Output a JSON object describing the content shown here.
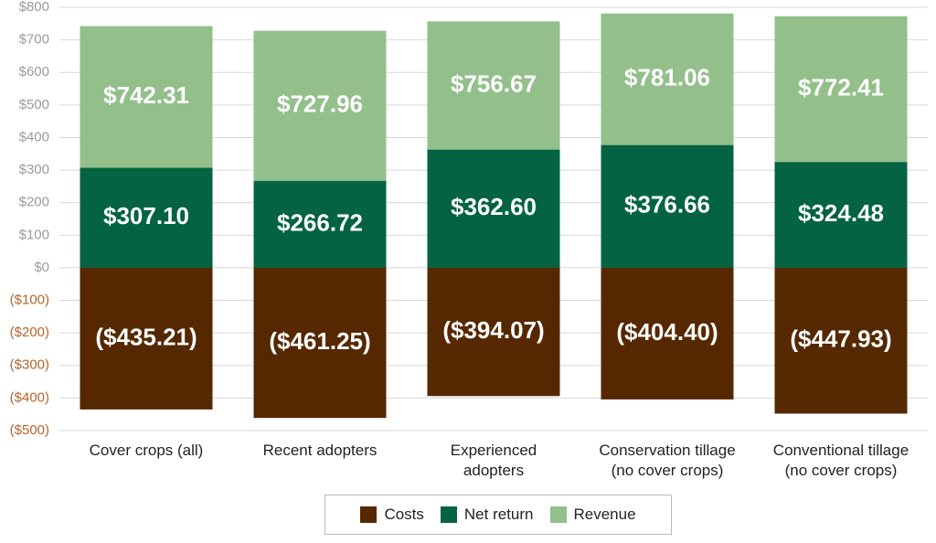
{
  "chart_data": {
    "type": "bar",
    "categories": [
      "Cover crops (all)",
      "Recent adopters",
      "Experienced\nadopters",
      "Conservation tillage\n(no cover crops)",
      "Conventional tillage\n(no cover crops)"
    ],
    "series": [
      {
        "name": "Costs",
        "color": "#552800",
        "values": [
          -435.21,
          -461.25,
          -394.07,
          -404.4,
          -447.93
        ],
        "value_labels": [
          "($435.21)",
          "($461.25)",
          "($394.07)",
          "($404.40)",
          "($447.93)"
        ]
      },
      {
        "name": "Net return",
        "color": "#036342",
        "values": [
          307.1,
          266.72,
          362.6,
          376.66,
          324.48
        ],
        "value_labels": [
          "$307.10",
          "$266.72",
          "$362.60",
          "$376.66",
          "$324.48"
        ]
      },
      {
        "name": "Revenue",
        "color": "#93bf8b",
        "values": [
          742.31,
          727.96,
          756.67,
          781.06,
          772.41
        ],
        "value_labels": [
          "$742.31",
          "$727.96",
          "$756.67",
          "$781.06",
          "$772.41"
        ]
      }
    ],
    "ylim": [
      -500,
      800
    ],
    "yticks": [
      {
        "value": -500,
        "label": "($500)"
      },
      {
        "value": -400,
        "label": "($400)"
      },
      {
        "value": -300,
        "label": "($300)"
      },
      {
        "value": -200,
        "label": "($200)"
      },
      {
        "value": -100,
        "label": "($100)"
      },
      {
        "value": 0,
        "label": "$0"
      },
      {
        "value": 100,
        "label": "$100"
      },
      {
        "value": 200,
        "label": "$200"
      },
      {
        "value": 300,
        "label": "$300"
      },
      {
        "value": 400,
        "label": "$400"
      },
      {
        "value": 500,
        "label": "$500"
      },
      {
        "value": 600,
        "label": "$600"
      },
      {
        "value": 700,
        "label": "$700"
      },
      {
        "value": 800,
        "label": "$800"
      }
    ],
    "grid": true,
    "tick_color": "#9a9a9a",
    "negative_tick_color": "#b5652b",
    "legend": "bottom"
  }
}
